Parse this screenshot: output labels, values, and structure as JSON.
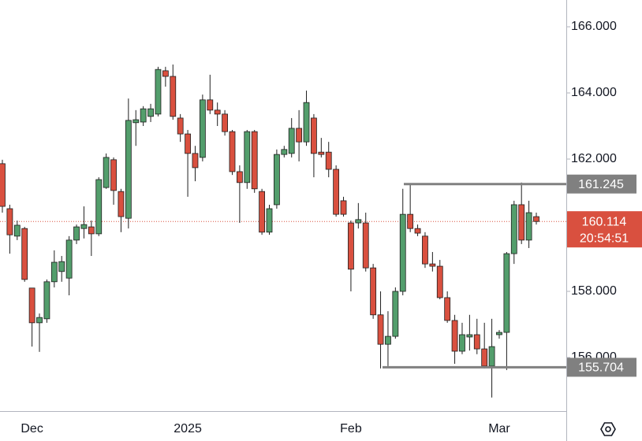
{
  "chart_data": {
    "type": "candlestick",
    "categories": [
      null,
      null,
      null,
      null,
      "Dec",
      null,
      null,
      null,
      null,
      null,
      null,
      null,
      null,
      null,
      null,
      null,
      null,
      null,
      null,
      null,
      null,
      null,
      null,
      null,
      null,
      "2025",
      null,
      null,
      null,
      null,
      null,
      null,
      null,
      null,
      null,
      null,
      null,
      null,
      null,
      null,
      null,
      null,
      null,
      null,
      null,
      null,
      null,
      "Feb",
      null,
      null,
      null,
      null,
      null,
      null,
      null,
      null,
      null,
      null,
      null,
      null,
      null,
      null,
      null,
      null,
      null,
      null,
      null,
      "Mar",
      null,
      null,
      null,
      null,
      null
    ],
    "open": [
      161.86,
      160.5,
      159.67,
      159.9,
      158.1,
      157.05,
      157.17,
      158.29,
      158.6,
      158.4,
      159.55,
      159.9,
      159.95,
      159.74,
      161.14,
      161.98,
      161.02,
      160.21,
      163.1,
      163.12,
      163.29,
      163.36,
      164.67,
      164.5,
      163.24,
      162.76,
      162.17,
      162.05,
      163.79,
      163.48,
      163.36,
      162.83,
      161.62,
      161.29,
      162.83,
      161.02,
      159.79,
      160.62,
      162.14,
      162.17,
      162.93,
      162.52,
      163.24,
      162.21,
      162.21,
      161.69,
      160.74,
      160.07,
      160.07,
      160.07,
      158.71,
      157.29,
      156.4,
      156.64,
      158.0,
      160.33,
      159.9,
      159.67,
      158.83,
      158.76,
      157.81,
      157.12,
      156.19,
      156.62,
      156.69,
      156.26,
      155.74,
      156.69,
      156.76,
      159.14,
      160.62,
      159.55,
      160.26
    ],
    "high": [
      161.98,
      160.62,
      160.14,
      159.95,
      158.1,
      157.33,
      158.36,
      159.24,
      159.07,
      159.67,
      160.02,
      160.57,
      160.14,
      161.45,
      162.17,
      162.05,
      161.1,
      163.83,
      163.48,
      163.6,
      163.67,
      164.79,
      164.79,
      164.86,
      163.36,
      162.88,
      162.4,
      163.95,
      164.55,
      163.71,
      163.48,
      162.88,
      161.81,
      162.88,
      162.88,
      161.1,
      160.62,
      162.29,
      162.4,
      163.24,
      163.48,
      164.07,
      163.36,
      162.64,
      162.52,
      161.81,
      160.86,
      160.14,
      160.67,
      160.38,
      158.83,
      158.0,
      157.4,
      158.12,
      161.1,
      161.24,
      160.02,
      159.79,
      159.19,
      158.95,
      158.0,
      157.29,
      157.05,
      157.29,
      157.17,
      157.05,
      157.17,
      156.83,
      159.19,
      160.74,
      161.29,
      160.74,
      160.38
    ],
    "low": [
      160.38,
      159.14,
      159.55,
      158.29,
      156.33,
      156.17,
      157.05,
      158.12,
      158.29,
      157.88,
      159.43,
      159.6,
      159.07,
      159.67,
      161.1,
      160.62,
      159.79,
      159.9,
      162.4,
      163.0,
      163.12,
      163.29,
      164.19,
      163.19,
      162.52,
      160.86,
      161.33,
      161.93,
      163.36,
      163.0,
      162.71,
      161.52,
      160.07,
      161.1,
      160.98,
      159.71,
      159.71,
      160.5,
      162.05,
      162.05,
      161.93,
      162.4,
      161.45,
      162.05,
      161.45,
      160.26,
      160.26,
      158.0,
      159.9,
      158.6,
      157.17,
      155.67,
      155.74,
      156.57,
      157.88,
      159.79,
      159.67,
      158.71,
      158.6,
      157.76,
      157.05,
      155.81,
      156.1,
      156.21,
      156.1,
      155.67,
      154.79,
      156.57,
      155.62,
      158.83,
      159.43,
      159.31,
      160.02
    ],
    "close": [
      160.57,
      159.71,
      160.0,
      158.36,
      157.05,
      157.21,
      158.29,
      158.88,
      158.9,
      159.55,
      159.95,
      160.02,
      159.74,
      161.38,
      162.05,
      161.05,
      160.26,
      163.17,
      163.19,
      163.52,
      163.52,
      164.71,
      164.5,
      163.29,
      162.76,
      162.17,
      161.74,
      163.79,
      163.48,
      163.36,
      162.83,
      161.62,
      161.29,
      162.83,
      161.1,
      159.79,
      160.5,
      162.14,
      162.29,
      162.93,
      162.52,
      163.71,
      162.17,
      162.14,
      161.69,
      160.33,
      160.33,
      158.67,
      160.17,
      158.71,
      157.29,
      156.4,
      156.64,
      158.0,
      160.33,
      159.9,
      159.76,
      158.83,
      158.76,
      157.81,
      157.12,
      156.19,
      156.69,
      156.69,
      156.26,
      155.74,
      156.33,
      156.76,
      159.14,
      160.62,
      159.55,
      160.38,
      160.114
    ],
    "up_color": "#539e6c",
    "down_color": "#d9503f",
    "ylim": [
      154.38,
      166.81
    ],
    "yticks": [
      {
        "value": 166,
        "label": "166.000"
      },
      {
        "value": 164,
        "label": "164.000"
      },
      {
        "value": 162,
        "label": "162.000"
      },
      {
        "value": 158,
        "label": "158.000"
      },
      {
        "value": 156,
        "label": "156.000"
      }
    ],
    "levels": [
      161.245,
      155.704
    ],
    "level_color": "#808080",
    "last_price": 160.114,
    "countdown": "20:54:51"
  }
}
